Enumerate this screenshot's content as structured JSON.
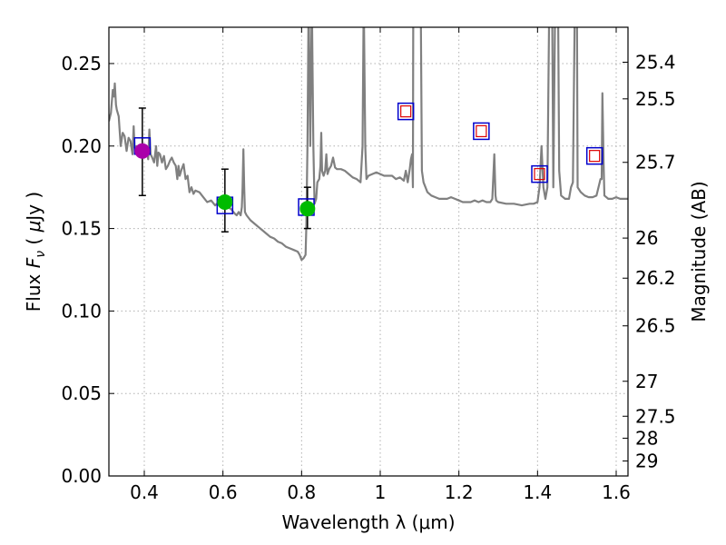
{
  "chart_data": {
    "type": "line",
    "title": "",
    "xlabel": "Wavelength  λ (μm)",
    "ylabel": "Flux  F_ν  ( μJy )",
    "ylabel_parts": {
      "text1": "Flux  ",
      "var": "F",
      "sub": "ν",
      "text2": "  ( ",
      "mu": "μ",
      "unit": "Jy )"
    },
    "y2label": "Magnitude (AB)",
    "xlim": [
      0.31,
      1.63
    ],
    "ylim": [
      0.0,
      0.272
    ],
    "grid": true,
    "x_ticks": [
      "0.4",
      "0.6",
      "0.8",
      "1",
      "1.2",
      "1.4",
      "1.6"
    ],
    "y_ticks": [
      "0.00",
      "0.05",
      "0.10",
      "0.15",
      "0.20",
      "0.25"
    ],
    "y2_ticks": [
      {
        "label": "25.4",
        "flux": 0.2508
      },
      {
        "label": "25.5",
        "flux": 0.2286
      },
      {
        "label": "25.7",
        "flux": 0.1901
      },
      {
        "label": "26",
        "flux": 0.1442
      },
      {
        "label": "26.2",
        "flux": 0.1199
      },
      {
        "label": "26.5",
        "flux": 0.091
      },
      {
        "label": "27",
        "flux": 0.0574
      },
      {
        "label": "27.5",
        "flux": 0.0362
      },
      {
        "label": "28",
        "flux": 0.0229
      },
      {
        "label": "29",
        "flux": 0.0091
      }
    ],
    "colors": {
      "model": "#808080",
      "observed_purple": "#aa00aa",
      "observed_green": "#00bb00",
      "model_box": "#0000cc",
      "upper_box": "#dd0000",
      "errorbar": "#000000",
      "grid": "#b0b0b0"
    },
    "model_spectrum": {
      "name": "SED model",
      "points": [
        [
          0.31,
          0.215
        ],
        [
          0.315,
          0.22
        ],
        [
          0.32,
          0.234
        ],
        [
          0.323,
          0.23
        ],
        [
          0.325,
          0.238
        ],
        [
          0.328,
          0.225
        ],
        [
          0.33,
          0.222
        ],
        [
          0.335,
          0.218
        ],
        [
          0.34,
          0.2
        ],
        [
          0.345,
          0.208
        ],
        [
          0.35,
          0.206
        ],
        [
          0.355,
          0.197
        ],
        [
          0.36,
          0.205
        ],
        [
          0.365,
          0.203
        ],
        [
          0.37,
          0.195
        ],
        [
          0.373,
          0.212
        ],
        [
          0.375,
          0.2
        ],
        [
          0.378,
          0.196
        ],
        [
          0.38,
          0.2
        ],
        [
          0.385,
          0.198
        ],
        [
          0.39,
          0.196
        ],
        [
          0.395,
          0.196
        ],
        [
          0.4,
          0.197
        ],
        [
          0.405,
          0.2
        ],
        [
          0.41,
          0.192
        ],
        [
          0.413,
          0.21
        ],
        [
          0.416,
          0.195
        ],
        [
          0.42,
          0.193
        ],
        [
          0.425,
          0.19
        ],
        [
          0.43,
          0.2
        ],
        [
          0.433,
          0.188
        ],
        [
          0.436,
          0.196
        ],
        [
          0.44,
          0.195
        ],
        [
          0.445,
          0.19
        ],
        [
          0.45,
          0.194
        ],
        [
          0.455,
          0.186
        ],
        [
          0.46,
          0.188
        ],
        [
          0.465,
          0.191
        ],
        [
          0.47,
          0.193
        ],
        [
          0.475,
          0.19
        ],
        [
          0.48,
          0.188
        ],
        [
          0.484,
          0.18
        ],
        [
          0.487,
          0.188
        ],
        [
          0.49,
          0.182
        ],
        [
          0.495,
          0.186
        ],
        [
          0.5,
          0.189
        ],
        [
          0.505,
          0.18
        ],
        [
          0.51,
          0.182
        ],
        [
          0.515,
          0.172
        ],
        [
          0.52,
          0.175
        ],
        [
          0.525,
          0.171
        ],
        [
          0.53,
          0.173
        ],
        [
          0.54,
          0.172
        ],
        [
          0.55,
          0.169
        ],
        [
          0.56,
          0.166
        ],
        [
          0.57,
          0.167
        ],
        [
          0.58,
          0.164
        ],
        [
          0.59,
          0.166
        ],
        [
          0.6,
          0.165
        ],
        [
          0.61,
          0.163
        ],
        [
          0.62,
          0.162
        ],
        [
          0.63,
          0.159
        ],
        [
          0.635,
          0.158
        ],
        [
          0.64,
          0.16
        ],
        [
          0.645,
          0.158
        ],
        [
          0.648,
          0.163
        ],
        [
          0.65,
          0.175
        ],
        [
          0.652,
          0.198
        ],
        [
          0.654,
          0.175
        ],
        [
          0.656,
          0.16
        ],
        [
          0.66,
          0.158
        ],
        [
          0.67,
          0.155
        ],
        [
          0.68,
          0.153
        ],
        [
          0.69,
          0.151
        ],
        [
          0.7,
          0.149
        ],
        [
          0.71,
          0.147
        ],
        [
          0.72,
          0.145
        ],
        [
          0.73,
          0.144
        ],
        [
          0.74,
          0.142
        ],
        [
          0.75,
          0.141
        ],
        [
          0.76,
          0.139
        ],
        [
          0.77,
          0.138
        ],
        [
          0.78,
          0.137
        ],
        [
          0.79,
          0.136
        ],
        [
          0.795,
          0.134
        ],
        [
          0.8,
          0.131
        ],
        [
          0.805,
          0.132
        ],
        [
          0.81,
          0.134
        ],
        [
          0.812,
          0.15
        ],
        [
          0.815,
          0.2
        ],
        [
          0.818,
          0.29
        ],
        [
          0.822,
          0.2
        ],
        [
          0.826,
          0.29
        ],
        [
          0.83,
          0.2
        ],
        [
          0.833,
          0.165
        ],
        [
          0.837,
          0.168
        ],
        [
          0.84,
          0.178
        ],
        [
          0.845,
          0.18
        ],
        [
          0.848,
          0.188
        ],
        [
          0.85,
          0.208
        ],
        [
          0.852,
          0.185
        ],
        [
          0.856,
          0.182
        ],
        [
          0.86,
          0.185
        ],
        [
          0.863,
          0.195
        ],
        [
          0.866,
          0.183
        ],
        [
          0.87,
          0.186
        ],
        [
          0.875,
          0.188
        ],
        [
          0.88,
          0.193
        ],
        [
          0.885,
          0.187
        ],
        [
          0.89,
          0.186
        ],
        [
          0.9,
          0.186
        ],
        [
          0.91,
          0.185
        ],
        [
          0.92,
          0.183
        ],
        [
          0.93,
          0.181
        ],
        [
          0.94,
          0.18
        ],
        [
          0.95,
          0.178
        ],
        [
          0.955,
          0.2
        ],
        [
          0.958,
          0.29
        ],
        [
          0.962,
          0.2
        ],
        [
          0.965,
          0.18
        ],
        [
          0.97,
          0.182
        ],
        [
          0.98,
          0.183
        ],
        [
          0.99,
          0.184
        ],
        [
          1.0,
          0.183
        ],
        [
          1.01,
          0.182
        ],
        [
          1.02,
          0.182
        ],
        [
          1.03,
          0.182
        ],
        [
          1.04,
          0.18
        ],
        [
          1.05,
          0.181
        ],
        [
          1.06,
          0.179
        ],
        [
          1.065,
          0.185
        ],
        [
          1.07,
          0.178
        ],
        [
          1.075,
          0.186
        ],
        [
          1.078,
          0.192
        ],
        [
          1.081,
          0.195
        ],
        [
          1.083,
          0.175
        ],
        [
          1.084,
          0.29
        ],
        [
          1.09,
          0.29
        ],
        [
          1.095,
          0.29
        ],
        [
          1.1,
          0.29
        ],
        [
          1.103,
          0.29
        ],
        [
          1.106,
          0.185
        ],
        [
          1.11,
          0.178
        ],
        [
          1.12,
          0.172
        ],
        [
          1.13,
          0.17
        ],
        [
          1.14,
          0.169
        ],
        [
          1.15,
          0.168
        ],
        [
          1.16,
          0.168
        ],
        [
          1.17,
          0.168
        ],
        [
          1.18,
          0.169
        ],
        [
          1.19,
          0.168
        ],
        [
          1.2,
          0.167
        ],
        [
          1.21,
          0.166
        ],
        [
          1.22,
          0.166
        ],
        [
          1.23,
          0.166
        ],
        [
          1.24,
          0.167
        ],
        [
          1.25,
          0.166
        ],
        [
          1.26,
          0.167
        ],
        [
          1.27,
          0.166
        ],
        [
          1.28,
          0.166
        ],
        [
          1.285,
          0.168
        ],
        [
          1.29,
          0.195
        ],
        [
          1.293,
          0.17
        ],
        [
          1.295,
          0.167
        ],
        [
          1.3,
          0.166
        ],
        [
          1.32,
          0.165
        ],
        [
          1.34,
          0.165
        ],
        [
          1.36,
          0.164
        ],
        [
          1.38,
          0.165
        ],
        [
          1.39,
          0.165
        ],
        [
          1.4,
          0.166
        ],
        [
          1.405,
          0.175
        ],
        [
          1.41,
          0.2
        ],
        [
          1.415,
          0.175
        ],
        [
          1.42,
          0.168
        ],
        [
          1.425,
          0.175
        ],
        [
          1.43,
          0.29
        ],
        [
          1.437,
          0.29
        ],
        [
          1.44,
          0.175
        ],
        [
          1.445,
          0.29
        ],
        [
          1.452,
          0.29
        ],
        [
          1.455,
          0.185
        ],
        [
          1.46,
          0.17
        ],
        [
          1.47,
          0.168
        ],
        [
          1.48,
          0.168
        ],
        [
          1.485,
          0.175
        ],
        [
          1.49,
          0.178
        ],
        [
          1.495,
          0.29
        ],
        [
          1.5,
          0.29
        ],
        [
          1.502,
          0.175
        ],
        [
          1.51,
          0.172
        ],
        [
          1.52,
          0.17
        ],
        [
          1.53,
          0.169
        ],
        [
          1.54,
          0.169
        ],
        [
          1.55,
          0.17
        ],
        [
          1.555,
          0.175
        ],
        [
          1.56,
          0.18
        ],
        [
          1.563,
          0.18
        ],
        [
          1.565,
          0.232
        ],
        [
          1.568,
          0.19
        ],
        [
          1.57,
          0.17
        ],
        [
          1.58,
          0.168
        ],
        [
          1.59,
          0.168
        ],
        [
          1.6,
          0.169
        ],
        [
          1.61,
          0.168
        ],
        [
          1.62,
          0.168
        ],
        [
          1.63,
          0.168
        ]
      ]
    },
    "observed": [
      {
        "name": "purple point",
        "x": 0.395,
        "y": 0.197,
        "yerr_low": 0.17,
        "yerr_high": 0.223,
        "color": "purple"
      },
      {
        "name": "green point 1",
        "x": 0.605,
        "y": 0.166,
        "yerr_low": 0.148,
        "yerr_high": 0.186,
        "color": "green"
      },
      {
        "name": "green point 2",
        "x": 0.815,
        "y": 0.162,
        "yerr_low": 0.15,
        "yerr_high": 0.175,
        "color": "green"
      }
    ],
    "model_boxes": [
      {
        "x": 0.395,
        "y": 0.2
      },
      {
        "x": 0.605,
        "y": 0.164
      },
      {
        "x": 0.812,
        "y": 0.163
      },
      {
        "x": 1.065,
        "y": 0.221
      },
      {
        "x": 1.257,
        "y": 0.209
      },
      {
        "x": 1.405,
        "y": 0.183
      },
      {
        "x": 1.545,
        "y": 0.194
      }
    ],
    "upper_boxes": [
      {
        "x": 1.065,
        "y": 0.221
      },
      {
        "x": 1.257,
        "y": 0.209
      },
      {
        "x": 1.405,
        "y": 0.183
      },
      {
        "x": 1.545,
        "y": 0.194
      }
    ]
  }
}
